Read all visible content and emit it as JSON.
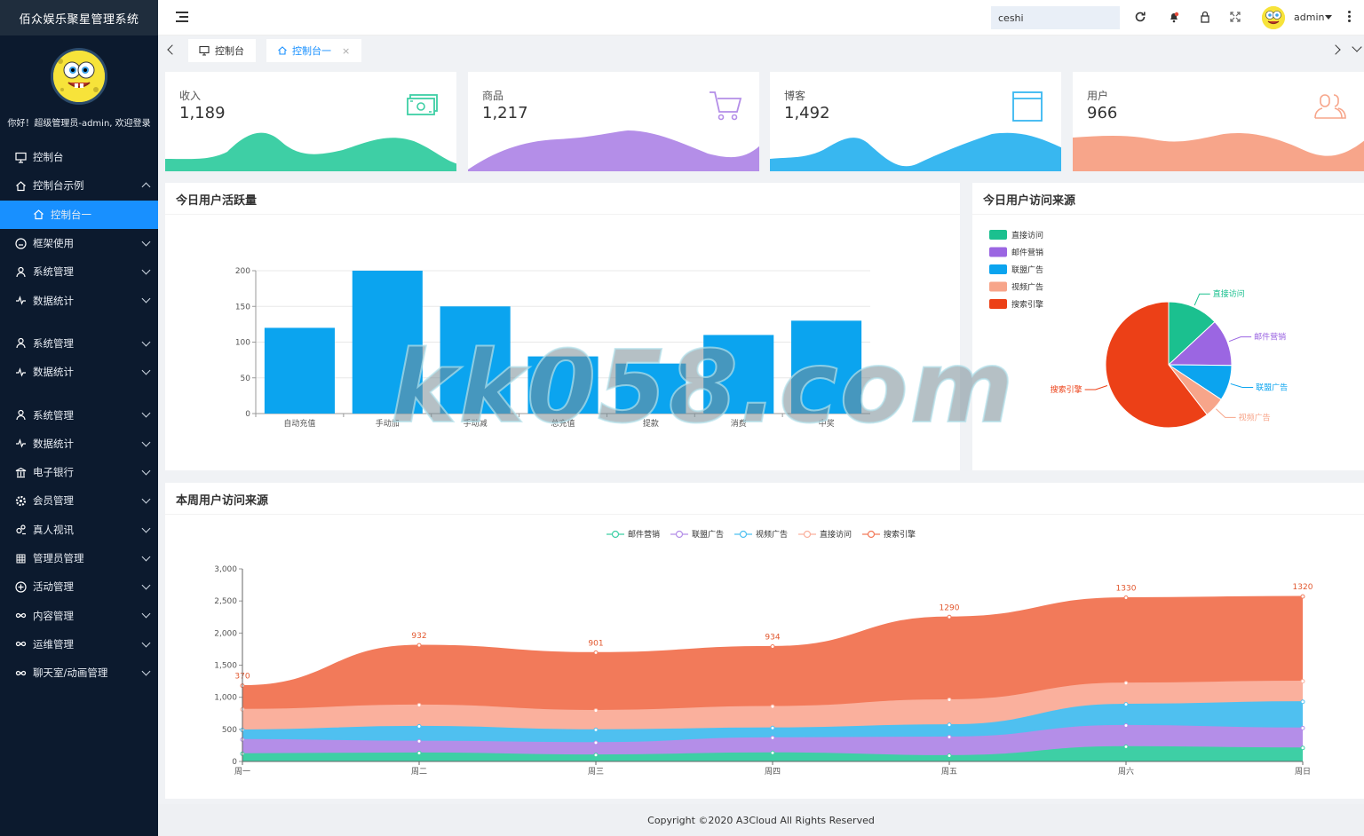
{
  "app": {
    "title": "佰众娱乐聚星管理系统",
    "welcome": "你好！超级管理员-admin, 欢迎登录"
  },
  "sidebar": {
    "items": [
      {
        "label": "控制台",
        "icon": "monitor-icon",
        "has_chevron": false
      },
      {
        "label": "控制台示例",
        "icon": "home-icon",
        "has_chevron": true,
        "expanded": true
      },
      {
        "label": "控制台一",
        "icon": "home-icon",
        "active": true,
        "has_chevron": false
      },
      {
        "label": "框架使用",
        "icon": "gauge-icon",
        "has_chevron": true
      },
      {
        "label": "系统管理",
        "icon": "user-icon",
        "has_chevron": true
      },
      {
        "label": "数据统计",
        "icon": "pulse-icon",
        "has_chevron": true,
        "gap_after": true
      },
      {
        "label": "系统管理",
        "icon": "user-icon",
        "has_chevron": true
      },
      {
        "label": "数据统计",
        "icon": "pulse-icon",
        "has_chevron": true,
        "gap_after": true
      },
      {
        "label": "系统管理",
        "icon": "user-icon",
        "has_chevron": true
      },
      {
        "label": "数据统计",
        "icon": "pulse-icon",
        "has_chevron": true
      },
      {
        "label": "电子银行",
        "icon": "bank-icon",
        "has_chevron": true
      },
      {
        "label": "会员管理",
        "icon": "gear-icon",
        "has_chevron": true
      },
      {
        "label": "真人视讯",
        "icon": "people-icon",
        "has_chevron": true
      },
      {
        "label": "管理员管理",
        "icon": "grid-icon",
        "has_chevron": true
      },
      {
        "label": "活动管理",
        "icon": "plus-circle-icon",
        "has_chevron": true
      },
      {
        "label": "内容管理",
        "icon": "infinity-icon",
        "has_chevron": true
      },
      {
        "label": "运维管理",
        "icon": "infinity-icon",
        "has_chevron": true
      },
      {
        "label": "聊天室/动画管理",
        "icon": "infinity-icon",
        "has_chevron": true
      }
    ]
  },
  "header": {
    "search_value": "ceshi",
    "user": "admin"
  },
  "tabs": [
    {
      "label": "控制台",
      "active": false
    },
    {
      "label": "控制台一",
      "active": true,
      "close": "×"
    }
  ],
  "stats": [
    {
      "label": "收入",
      "value": "1,189",
      "color": "#3ecfa5",
      "icon": "money-icon"
    },
    {
      "label": "商品",
      "value": "1,217",
      "color": "#b48ee8",
      "icon": "cart-icon"
    },
    {
      "label": "博客",
      "value": "1,492",
      "color": "#38b7f0",
      "icon": "browser-icon"
    },
    {
      "label": "用户",
      "value": "966",
      "color": "#f7a58a",
      "icon": "users-icon"
    }
  ],
  "panels": {
    "bar_title": "今日用户活跃量",
    "pie_title": "今日用户访问来源",
    "area_title": "本周用户访问来源"
  },
  "chart_data": [
    {
      "type": "bar",
      "categories": [
        "自动充值",
        "手动加",
        "手动减",
        "总充值",
        "提款",
        "消费",
        "中奖"
      ],
      "values": [
        120,
        200,
        150,
        80,
        70,
        110,
        130
      ],
      "ylim": [
        0,
        200
      ],
      "yticks": [
        0,
        50,
        100,
        150,
        200
      ],
      "color": "#0ba4ef",
      "grid": true
    },
    {
      "type": "pie",
      "legend_position": "top-left",
      "slices": [
        {
          "name": "直接访问",
          "value": 335,
          "color": "#1bc08f"
        },
        {
          "name": "邮件营销",
          "value": 310,
          "color": "#9b66e2"
        },
        {
          "name": "联盟广告",
          "value": 234,
          "color": "#0ba4ef"
        },
        {
          "name": "视频广告",
          "value": 135,
          "color": "#f7a58a"
        },
        {
          "name": "搜索引擎",
          "value": 1548,
          "color": "#ec4017"
        }
      ]
    },
    {
      "type": "area",
      "stacked": true,
      "legend_position": "top-center",
      "categories": [
        "周一",
        "周二",
        "周三",
        "周四",
        "周五",
        "周六",
        "周日"
      ],
      "ylim": [
        0,
        3000
      ],
      "yticks": [
        "0",
        "500",
        "1,000",
        "1,500",
        "2,000",
        "2,500",
        "3,000"
      ],
      "series": [
        {
          "name": "邮件营销",
          "color": "#3ecfa5",
          "values": [
            120,
            132,
            101,
            134,
            90,
            230,
            210
          ]
        },
        {
          "name": "联盟广告",
          "color": "#b48ee8",
          "values": [
            220,
            182,
            191,
            234,
            290,
            330,
            310
          ]
        },
        {
          "name": "视频广告",
          "color": "#4fc0f0",
          "values": [
            150,
            232,
            201,
            154,
            190,
            330,
            410
          ]
        },
        {
          "name": "直接访问",
          "color": "#fab09d",
          "values": [
            320,
            332,
            301,
            334,
            390,
            330,
            320
          ]
        },
        {
          "name": "搜索引擎",
          "color": "#f27a5a",
          "values": [
            370,
            932,
            901,
            934,
            1290,
            1330,
            1320
          ],
          "show_labels": true
        }
      ]
    }
  ],
  "footer": {
    "copyright": "Copyright ©2020 A3Cloud All Rights Reserved"
  },
  "watermark": "kk058.com"
}
